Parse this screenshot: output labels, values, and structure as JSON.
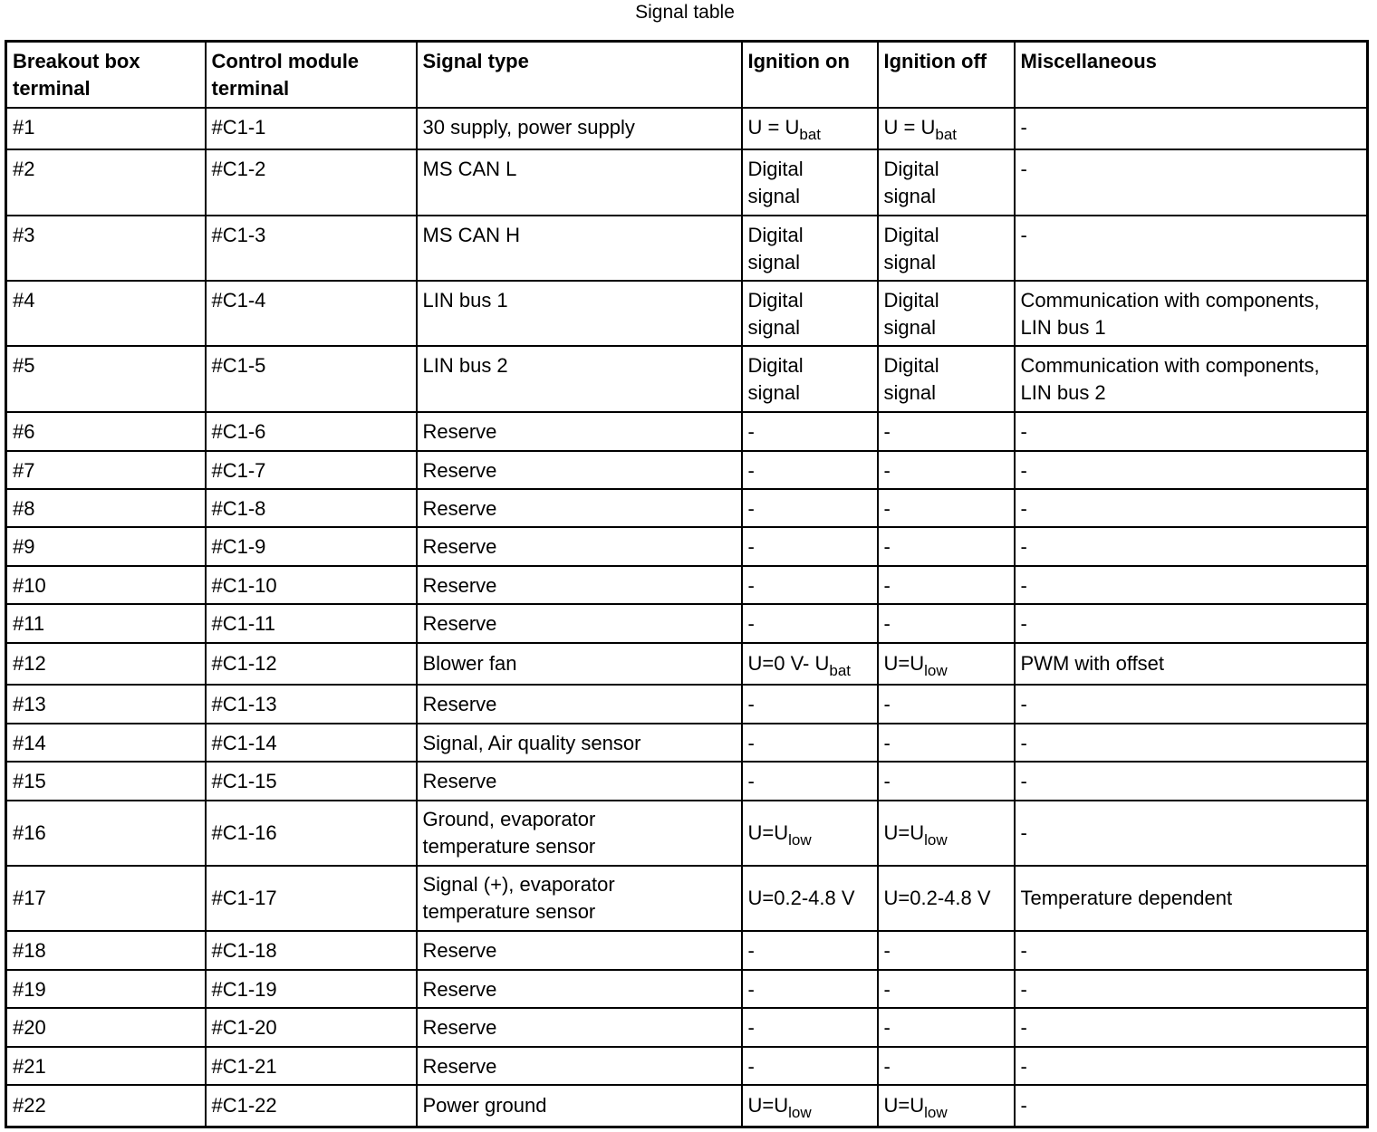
{
  "title": "Signal table",
  "headers": [
    "Breakout box\nterminal",
    "Control module\nterminal",
    "Signal type",
    "Ignition on",
    "Ignition off",
    "Miscellaneous"
  ],
  "rows": [
    [
      "#1",
      "#C1-1",
      "30 supply, power supply",
      {
        "text": "U = U",
        "sub": "bat"
      },
      {
        "text": "U = U",
        "sub": "bat"
      },
      "-"
    ],
    [
      "#2",
      "#C1-2",
      "MS CAN L",
      "Digital\nsignal",
      "Digital\nsignal",
      "-"
    ],
    [
      "#3",
      "#C1-3",
      "MS CAN H",
      "Digital\nsignal",
      "Digital\nsignal",
      "-"
    ],
    [
      "#4",
      "#C1-4",
      "LIN bus 1",
      "Digital\nsignal",
      "Digital\nsignal",
      "Communication with components,\nLIN bus 1"
    ],
    [
      "#5",
      "#C1-5",
      "LIN bus 2",
      "Digital\nsignal",
      "Digital\nsignal",
      "Communication with components,\nLIN bus 2"
    ],
    [
      "#6",
      "#C1-6",
      "Reserve",
      "-",
      "-",
      "-"
    ],
    [
      "#7",
      "#C1-7",
      "Reserve",
      "-",
      "-",
      "-"
    ],
    [
      "#8",
      "#C1-8",
      "Reserve",
      "-",
      "-",
      "-"
    ],
    [
      "#9",
      "#C1-9",
      "Reserve",
      "-",
      "-",
      "-"
    ],
    [
      "#10",
      "#C1-10",
      "Reserve",
      "-",
      "-",
      "-"
    ],
    [
      "#11",
      "#C1-11",
      "Reserve",
      "-",
      "-",
      "-"
    ],
    [
      "#12",
      "#C1-12",
      "Blower fan",
      {
        "text": "U=0 V- U",
        "sub": "bat"
      },
      {
        "text": "U=U",
        "sub": "low"
      },
      "PWM with offset"
    ],
    [
      "#13",
      "#C1-13",
      "Reserve",
      "-",
      "-",
      "-"
    ],
    [
      "#14",
      "#C1-14",
      "Signal, Air quality sensor",
      "-",
      "-",
      "-"
    ],
    [
      "#15",
      "#C1-15",
      "Reserve",
      "-",
      "-",
      "-"
    ],
    [
      "#16",
      "#C1-16",
      "Ground, evaporator\ntemperature sensor",
      {
        "text": "U=U",
        "sub": "low"
      },
      {
        "text": "U=U",
        "sub": "low"
      },
      "-"
    ],
    [
      "#17",
      "#C1-17",
      "Signal (+), evaporator\ntemperature sensor",
      "U=0.2-4.8 V",
      "U=0.2-4.8 V",
      "Temperature dependent"
    ],
    [
      "#18",
      "#C1-18",
      "Reserve",
      "-",
      "-",
      "-"
    ],
    [
      "#19",
      "#C1-19",
      "Reserve",
      "-",
      "-",
      "-"
    ],
    [
      "#20",
      "#C1-20",
      "Reserve",
      "-",
      "-",
      "-"
    ],
    [
      "#21",
      "#C1-21",
      "Reserve",
      "-",
      "-",
      "-"
    ],
    [
      "#22",
      "#C1-22",
      "Power ground",
      {
        "text": "U=U",
        "sub": "low"
      },
      {
        "text": "U=U",
        "sub": "low"
      },
      "-"
    ]
  ]
}
